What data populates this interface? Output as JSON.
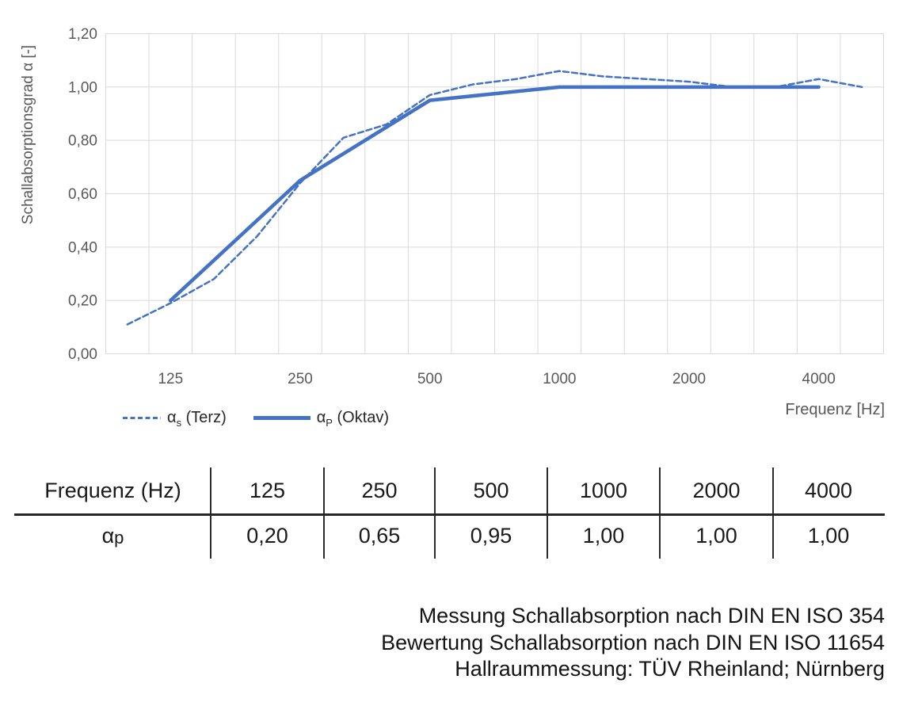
{
  "chart_data": {
    "type": "line",
    "title": "",
    "ylabel": "Schallabsorptionsgrad α [-]",
    "xlabel": "Frequenz [Hz]",
    "ylim": [
      0,
      1.2
    ],
    "ytick_step": 0.2,
    "ytick_labels": [
      "0,00",
      "0,20",
      "0,40",
      "0,60",
      "0,80",
      "1,00",
      "1,20"
    ],
    "categories": [
      "100",
      "125",
      "160",
      "200",
      "250",
      "315",
      "400",
      "500",
      "630",
      "800",
      "1000",
      "1250",
      "1600",
      "2000",
      "2500",
      "3150",
      "4000",
      "5000"
    ],
    "xticks": [
      "125",
      "250",
      "500",
      "1000",
      "2000",
      "4000"
    ],
    "grid": true,
    "grid_color": "#D9D9D9",
    "axis_text_color": "#595959",
    "legend_position": "bottom-left",
    "series": [
      {
        "name": "αs (Terz)",
        "style": "dashed",
        "color": "#4472C4",
        "categories": [
          "100",
          "125",
          "160",
          "200",
          "250",
          "315",
          "400",
          "500",
          "630",
          "800",
          "1000",
          "1250",
          "1600",
          "2000",
          "2500",
          "3150",
          "4000",
          "5000"
        ],
        "values": [
          0.11,
          0.19,
          0.28,
          0.44,
          0.64,
          0.81,
          0.86,
          0.97,
          1.01,
          1.03,
          1.06,
          1.04,
          1.03,
          1.02,
          1.0,
          1.0,
          1.03,
          1.0
        ]
      },
      {
        "name": "αP (Oktav)",
        "style": "solid",
        "color": "#4472C4",
        "categories": [
          "125",
          "250",
          "500",
          "1000",
          "2000",
          "4000"
        ],
        "values": [
          0.2,
          0.65,
          0.95,
          1.0,
          1.0,
          1.0
        ]
      }
    ]
  },
  "legend": {
    "items": [
      {
        "alpha": "α",
        "sub": "s",
        "rest": " (Terz)"
      },
      {
        "alpha": "α",
        "sub": "P",
        "rest": " (Oktav)"
      }
    ]
  },
  "table": {
    "columns": [
      "Frequenz (Hz)",
      "125",
      "250",
      "500",
      "1000",
      "2000",
      "4000"
    ],
    "row_label": {
      "alpha": "α",
      "sub": "p"
    },
    "values": [
      "0,20",
      "0,65",
      "0,95",
      "1,00",
      "1,00",
      "1,00"
    ]
  },
  "footer": {
    "lines": [
      "Messung Schallabsorption nach DIN EN ISO 354",
      "Bewertung Schallabsorption nach DIN EN ISO 11654",
      "Hallraummessung: TÜV Rheinland; Nürnberg"
    ]
  }
}
